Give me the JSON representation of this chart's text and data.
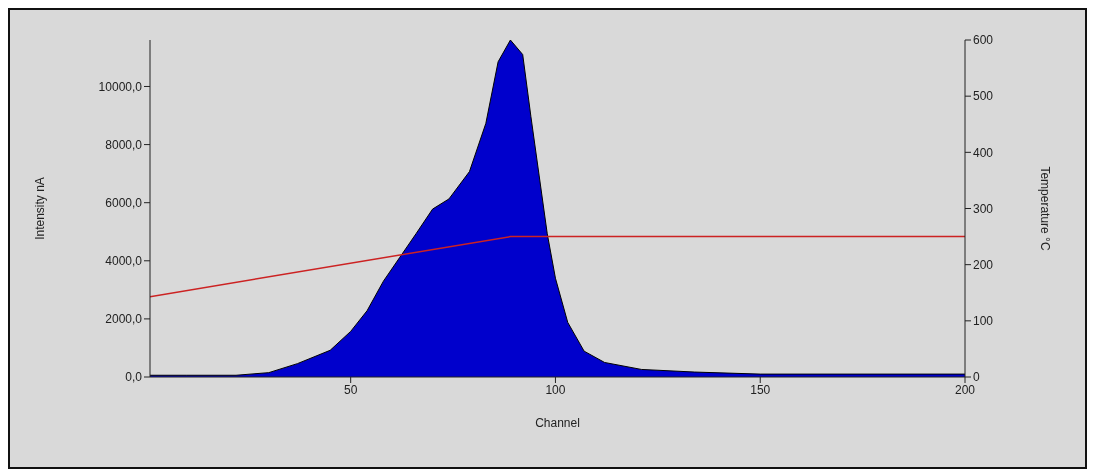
{
  "chart_data": {
    "type": "area",
    "xlabel": "Channel",
    "ylabel": "Intensity nA",
    "y2label": "Temperature °C",
    "xlim": [
      1,
      200
    ],
    "xticks": [
      50,
      100,
      150,
      200
    ],
    "ylim": [
      0,
      11600
    ],
    "yticks": [
      {
        "value": 0,
        "label": "0,0"
      },
      {
        "value": 2000,
        "label": "2000,0"
      },
      {
        "value": 4000,
        "label": "4000,0"
      },
      {
        "value": 6000,
        "label": "6000,0"
      },
      {
        "value": 8000,
        "label": "8000,0"
      },
      {
        "value": 10000,
        "label": "10000,0"
      }
    ],
    "y2lim": [
      0,
      600
    ],
    "y2ticks": [
      0,
      100,
      200,
      300,
      400,
      500,
      600
    ],
    "marker": "none",
    "series": [
      {
        "color": "#0000cc",
        "x": [
          1,
          10,
          22,
          30,
          37,
          45,
          50,
          54,
          58,
          62,
          66,
          70,
          74,
          79,
          83,
          86,
          89,
          92,
          94,
          96,
          98,
          100,
          103,
          107,
          112,
          121,
          134,
          150,
          200
        ],
        "values": [
          60,
          60,
          60,
          150,
          460,
          920,
          1570,
          2280,
          3300,
          4120,
          4940,
          5780,
          6130,
          7070,
          8730,
          10850,
          11600,
          11100,
          8970,
          6950,
          4930,
          3400,
          1880,
          890,
          500,
          260,
          170,
          100,
          100
        ]
      },
      {
        "type": "line",
        "color": "#cc2222",
        "axis": "y2",
        "line_style": "solid",
        "x": [
          1,
          89,
          200
        ],
        "values": [
          143,
          250,
          250
        ]
      }
    ]
  }
}
